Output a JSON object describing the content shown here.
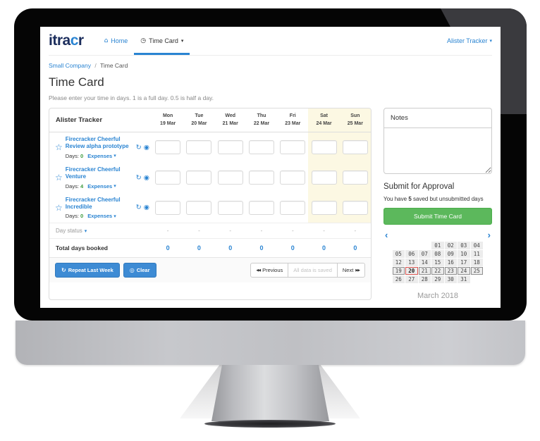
{
  "brand": {
    "prefix": "itra",
    "accent": "c",
    "suffix": "r"
  },
  "header": {
    "home_label": "Home",
    "timecard_label": "Time Card",
    "user_label": "Alister Tracker"
  },
  "breadcrumb": {
    "company": "Small Company",
    "separator": "/",
    "current": "Time Card"
  },
  "page": {
    "title": "Time Card",
    "instructions": "Please enter your time in days. 1 is a full day. 0.5 is half a day."
  },
  "timecard": {
    "owner": "Alister Tracker",
    "days": [
      {
        "dow": "Mon",
        "date": "19 Mar",
        "weekend": false
      },
      {
        "dow": "Tue",
        "date": "20 Mar",
        "weekend": false
      },
      {
        "dow": "Wed",
        "date": "21 Mar",
        "weekend": false
      },
      {
        "dow": "Thu",
        "date": "22 Mar",
        "weekend": false
      },
      {
        "dow": "Fri",
        "date": "23 Mar",
        "weekend": false
      },
      {
        "dow": "Sat",
        "date": "24 Mar",
        "weekend": true
      },
      {
        "dow": "Sun",
        "date": "25 Mar",
        "weekend": true
      }
    ],
    "projects": [
      {
        "name": "Firecracker Cheerful Review alpha prototype",
        "days_label": "Days:",
        "days": "0",
        "expenses_label": "Expenses",
        "values": [
          "",
          "",
          "",
          "",
          "",
          "",
          ""
        ]
      },
      {
        "name": "Firecracker Cheerful Venture",
        "days_label": "Days:",
        "days": "4",
        "expenses_label": "Expenses",
        "values": [
          "",
          "",
          "",
          "",
          "",
          "",
          ""
        ]
      },
      {
        "name": "Firecracker Cheerful Incredible",
        "days_label": "Days:",
        "days": "0",
        "expenses_label": "Expenses",
        "values": [
          "",
          "",
          "",
          "",
          "",
          "",
          ""
        ]
      }
    ],
    "day_status_label": "Day status",
    "day_statuses": [
      "-",
      "-",
      "-",
      "-",
      "-",
      "-",
      "-"
    ],
    "total_label": "Total days booked",
    "totals": [
      "0",
      "0",
      "0",
      "0",
      "0",
      "0",
      "0"
    ],
    "footer": {
      "repeat_label": "Repeat Last Week",
      "clear_label": "Clear",
      "previous_label": "Previous",
      "saved_label": "All data is saved",
      "next_label": "Next"
    }
  },
  "sidebar": {
    "notes_label": "Notes",
    "notes_value": "",
    "submit_heading": "Submit for Approval",
    "unsubmitted_prefix": "You have",
    "unsubmitted_count": "5",
    "unsubmitted_suffix": "saved but unsubmitted days",
    "submit_button_label": "Submit Time Card",
    "calendar": {
      "month_label": "March 2018",
      "rows": [
        [
          "",
          "",
          "",
          "01",
          "02",
          "03",
          "04"
        ],
        [
          "05",
          "06",
          "07",
          "08",
          "09",
          "10",
          "11"
        ],
        [
          "12",
          "13",
          "14",
          "15",
          "16",
          "17",
          "18"
        ],
        [
          "19",
          "20",
          "21",
          "22",
          "23",
          "24",
          "25"
        ],
        [
          "26",
          "27",
          "28",
          "29",
          "30",
          "31",
          ""
        ]
      ],
      "selected_row": 3,
      "today": "20"
    }
  },
  "colors": {
    "accent_blue": "#2a84d2",
    "logo_navy": "#1b2d5c",
    "button_green": "#5cb85c",
    "weekend_bg": "#fcf8e3",
    "today_border": "#d9534f",
    "days_green": "#3c9a3c"
  }
}
